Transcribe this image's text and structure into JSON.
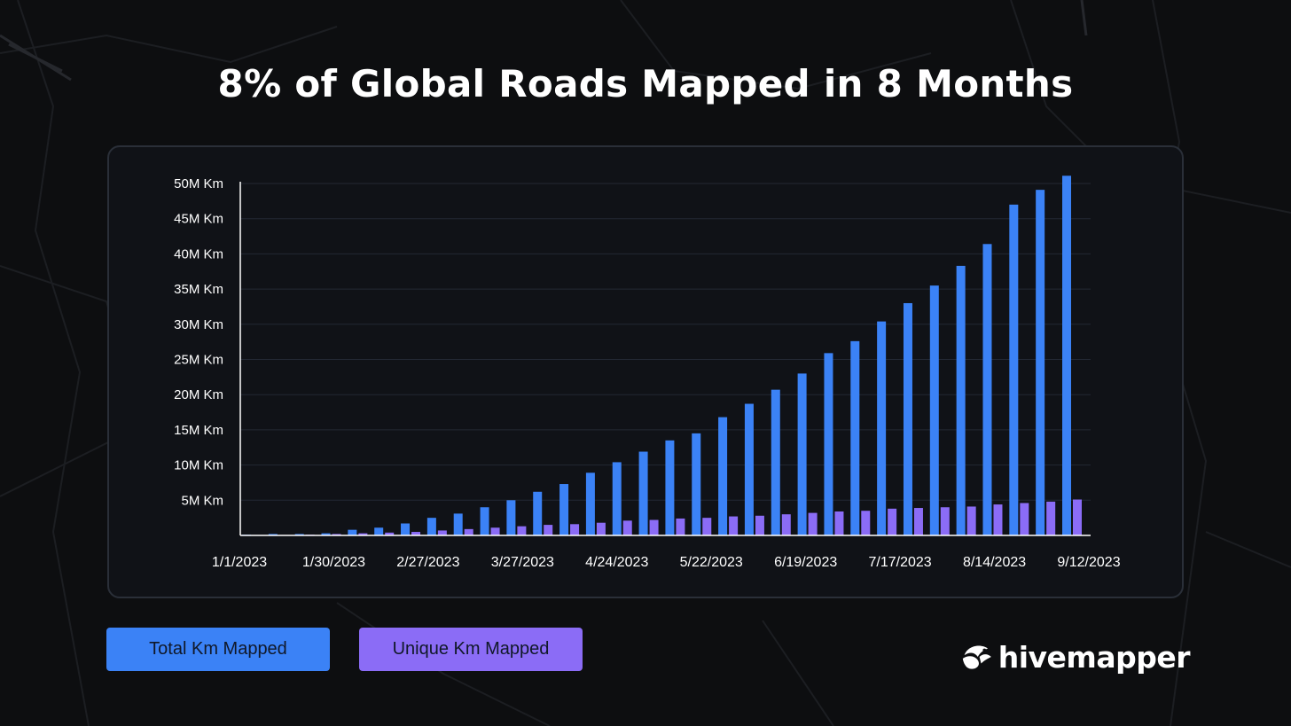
{
  "title": "8% of Global Roads Mapped in 8 Months",
  "legend": {
    "total_label": "Total Km Mapped",
    "unique_label": "Unique Km Mapped"
  },
  "logo": {
    "text": "hivemapper",
    "icon": "bee-logo-icon"
  },
  "colors": {
    "background": "#0d0e10",
    "panel": "#101217",
    "total": "#3b82f6",
    "unique": "#8b6cf6",
    "grid": "#232833",
    "axis": "#ffffff"
  },
  "chart_data": {
    "type": "bar",
    "title": "",
    "xlabel": "",
    "ylabel": "",
    "ylim": [
      0,
      50000000
    ],
    "y_ticks": [
      {
        "value": 5000000,
        "label": "5M Km"
      },
      {
        "value": 10000000,
        "label": "10M Km"
      },
      {
        "value": 15000000,
        "label": "15M Km"
      },
      {
        "value": 20000000,
        "label": "20M Km"
      },
      {
        "value": 25000000,
        "label": "25M Km"
      },
      {
        "value": 30000000,
        "label": "30M Km"
      },
      {
        "value": 35000000,
        "label": "35M Km"
      },
      {
        "value": 40000000,
        "label": "40M Km"
      },
      {
        "value": 45000000,
        "label": "45M Km"
      },
      {
        "value": 50000000,
        "label": "50M Km"
      }
    ],
    "x_tick_labels": [
      "1/1/2023",
      "1/30/2023",
      "2/27/2023",
      "3/27/2023",
      "4/24/2023",
      "5/22/2023",
      "6/19/2023",
      "7/17/2023",
      "8/14/2023",
      "9/12/2023"
    ],
    "grid": true,
    "legend_position": "bottom-left",
    "bar_count": 32,
    "series": [
      {
        "name": "Total Km Mapped",
        "color": "#3b82f6",
        "values": [
          0.1,
          0.2,
          0.2,
          0.3,
          0.8,
          1.1,
          1.7,
          2.5,
          3.1,
          4.0,
          5.0,
          6.2,
          7.3,
          8.9,
          10.4,
          11.9,
          13.5,
          14.5,
          16.8,
          18.7,
          20.7,
          23.0,
          25.9,
          27.6,
          30.4,
          33.0,
          35.5,
          38.3,
          41.4,
          47.0,
          49.1,
          51.1
        ]
      },
      {
        "name": "Unique Km Mapped",
        "color": "#8b6cf6",
        "values": [
          0.05,
          0.05,
          0.1,
          0.2,
          0.3,
          0.4,
          0.5,
          0.7,
          0.9,
          1.1,
          1.3,
          1.5,
          1.6,
          1.8,
          2.1,
          2.2,
          2.4,
          2.5,
          2.7,
          2.8,
          3.0,
          3.2,
          3.4,
          3.5,
          3.8,
          3.9,
          4.0,
          4.1,
          4.4,
          4.6,
          4.8,
          5.1
        ]
      }
    ]
  }
}
